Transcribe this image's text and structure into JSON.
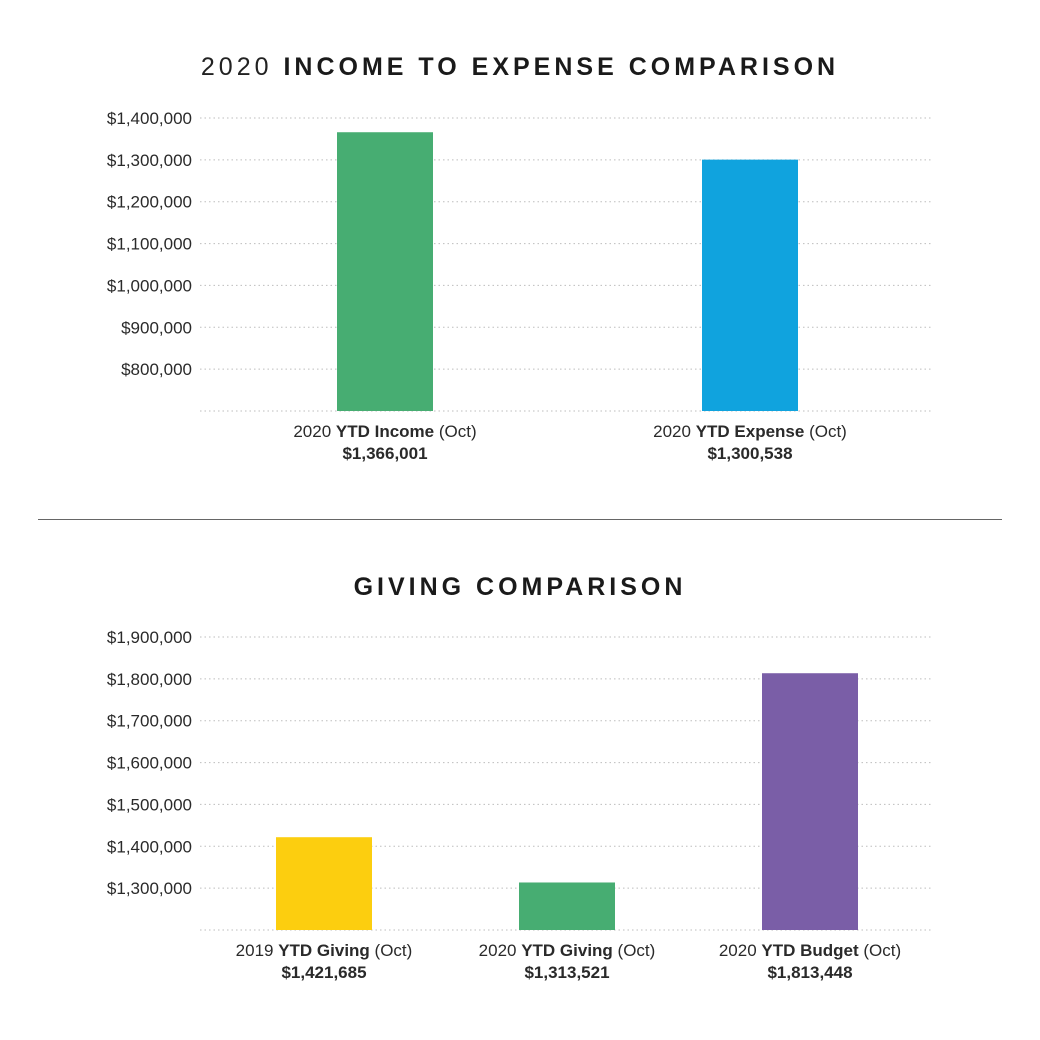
{
  "chart_data": [
    {
      "type": "bar",
      "title_prefix": "2020",
      "title": "INCOME TO EXPENSE COMPARISON",
      "xlabel": "",
      "ylabel": "",
      "ylim": [
        700000,
        1400000
      ],
      "yticks": [
        800000,
        900000,
        1000000,
        1100000,
        1200000,
        1300000,
        1400000
      ],
      "ytick_labels": [
        "$800,000",
        "$900,000",
        "$1,000,000",
        "$1,100,000",
        "$1,200,000",
        "$1,300,000",
        "$1,400,000"
      ],
      "grid": true,
      "grid_style": "dotted",
      "categories": [
        {
          "prefix": "2020",
          "bold": "YTD Income",
          "suffix": "(Oct)",
          "value_label": "$1,366,001"
        },
        {
          "prefix": "2020",
          "bold": "YTD Expense",
          "suffix": "(Oct)",
          "value_label": "$1,300,538"
        }
      ],
      "values": [
        1366001,
        1300538
      ],
      "colors": [
        "#47ad72",
        "#10a3de"
      ]
    },
    {
      "type": "bar",
      "title_prefix": "",
      "title": "GIVING COMPARISON",
      "xlabel": "",
      "ylabel": "",
      "ylim": [
        1200000,
        1900000
      ],
      "yticks": [
        1300000,
        1400000,
        1500000,
        1600000,
        1700000,
        1800000,
        1900000
      ],
      "ytick_labels": [
        "$1,300,000",
        "$1,400,000",
        "$1,500,000",
        "$1,600,000",
        "$1,700,000",
        "$1,800,000",
        "$1,900,000"
      ],
      "grid": true,
      "grid_style": "dotted",
      "categories": [
        {
          "prefix": "2019",
          "bold": "YTD Giving",
          "suffix": "(Oct)",
          "value_label": "$1,421,685"
        },
        {
          "prefix": "2020",
          "bold": "YTD Giving",
          "suffix": "(Oct)",
          "value_label": "$1,313,521"
        },
        {
          "prefix": "2020",
          "bold": "YTD Budget",
          "suffix": "(Oct)",
          "value_label": "$1,813,448"
        }
      ],
      "values": [
        1421685,
        1313521,
        1813448
      ],
      "colors": [
        "#fcce0f",
        "#47ad72",
        "#7a5ea7"
      ]
    }
  ]
}
